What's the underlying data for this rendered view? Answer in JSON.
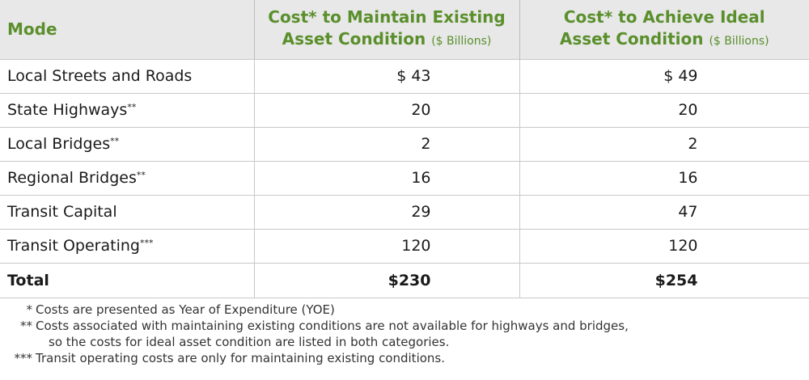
{
  "table": {
    "headers": {
      "mode": "Mode",
      "maintain_line1": "Cost* to Maintain Existing",
      "maintain_line2": "Asset Condition",
      "ideal_line1": "Cost* to Achieve Ideal",
      "ideal_line2": "Asset Condition",
      "unit": "($ Billions)"
    },
    "rows": [
      {
        "mode": "Local Streets and Roads",
        "mark": "",
        "maintain": "$ 43",
        "ideal": "$ 49"
      },
      {
        "mode": "State Highways",
        "mark": "**",
        "maintain": "20",
        "ideal": "20"
      },
      {
        "mode": "Local Bridges",
        "mark": "**",
        "maintain": "2",
        "ideal": "2"
      },
      {
        "mode": "Regional Bridges",
        "mark": "**",
        "maintain": "16",
        "ideal": "16"
      },
      {
        "mode": "Transit Capital",
        "mark": "",
        "maintain": "29",
        "ideal": "47"
      },
      {
        "mode": "Transit Operating",
        "mark": "***",
        "maintain": "120",
        "ideal": "120"
      }
    ],
    "total": {
      "label": "Total",
      "maintain": "$230",
      "ideal": "$254"
    }
  },
  "footnotes": [
    {
      "mark": "*",
      "text": "Costs are presented as Year of Expenditure (YOE)"
    },
    {
      "mark": "**",
      "text": "Costs associated with maintaining existing conditions are not available for highways and bridges,"
    },
    {
      "mark": "",
      "text": "so the costs for ideal asset condition are listed in both categories."
    },
    {
      "mark": "***",
      "text": "Transit operating costs are only for maintaining existing conditions."
    }
  ],
  "colors": {
    "header_text": "#5a8f2c",
    "header_bg": "#e8e8e8",
    "rule": "#c8c8c8"
  }
}
